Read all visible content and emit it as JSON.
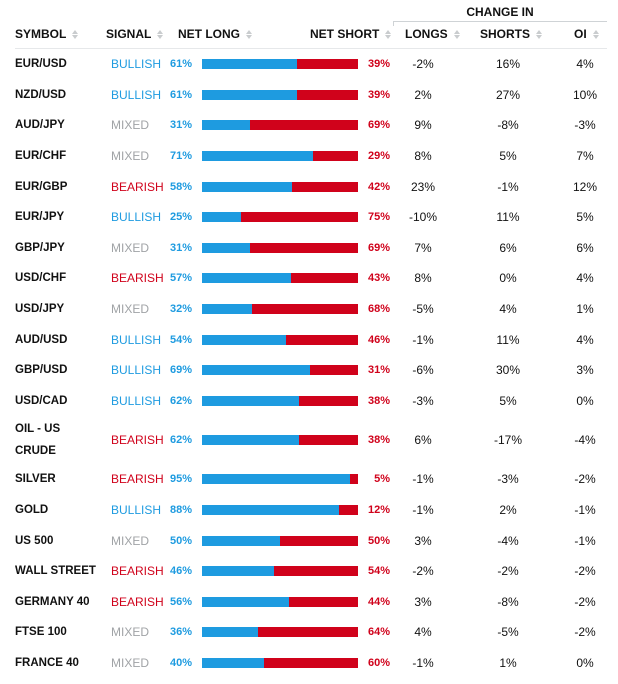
{
  "colors": {
    "bullish": "#1e9be0",
    "bearish": "#d0021b",
    "mixed": "#a0a3a6"
  },
  "header": {
    "group_label": "CHANGE IN",
    "columns": {
      "symbol": "SYMBOL",
      "signal": "SIGNAL",
      "net_long": "NET LONG",
      "net_short": "NET SHORT",
      "longs": "LONGS",
      "shorts": "SHORTS",
      "oi": "OI"
    }
  },
  "rows": [
    {
      "symbol": "EUR/USD",
      "signal": "BULLISH",
      "net_long": "61%",
      "net_short": "39%",
      "long_pct": 61,
      "longs": "-2%",
      "shorts": "16%",
      "oi": "4%"
    },
    {
      "symbol": "NZD/USD",
      "signal": "BULLISH",
      "net_long": "61%",
      "net_short": "39%",
      "long_pct": 61,
      "longs": "2%",
      "shorts": "27%",
      "oi": "10%"
    },
    {
      "symbol": "AUD/JPY",
      "signal": "MIXED",
      "net_long": "31%",
      "net_short": "69%",
      "long_pct": 31,
      "longs": "9%",
      "shorts": "-8%",
      "oi": "-3%"
    },
    {
      "symbol": "EUR/CHF",
      "signal": "MIXED",
      "net_long": "71%",
      "net_short": "29%",
      "long_pct": 71,
      "longs": "8%",
      "shorts": "5%",
      "oi": "7%"
    },
    {
      "symbol": "EUR/GBP",
      "signal": "BEARISH",
      "net_long": "58%",
      "net_short": "42%",
      "long_pct": 58,
      "longs": "23%",
      "shorts": "-1%",
      "oi": "12%"
    },
    {
      "symbol": "EUR/JPY",
      "signal": "BULLISH",
      "net_long": "25%",
      "net_short": "75%",
      "long_pct": 25,
      "longs": "-10%",
      "shorts": "11%",
      "oi": "5%"
    },
    {
      "symbol": "GBP/JPY",
      "signal": "MIXED",
      "net_long": "31%",
      "net_short": "69%",
      "long_pct": 31,
      "longs": "7%",
      "shorts": "6%",
      "oi": "6%"
    },
    {
      "symbol": "USD/CHF",
      "signal": "BEARISH",
      "net_long": "57%",
      "net_short": "43%",
      "long_pct": 57,
      "longs": "8%",
      "shorts": "0%",
      "oi": "4%"
    },
    {
      "symbol": "USD/JPY",
      "signal": "MIXED",
      "net_long": "32%",
      "net_short": "68%",
      "long_pct": 32,
      "longs": "-5%",
      "shorts": "4%",
      "oi": "1%"
    },
    {
      "symbol": "AUD/USD",
      "signal": "BULLISH",
      "net_long": "54%",
      "net_short": "46%",
      "long_pct": 54,
      "longs": "-1%",
      "shorts": "11%",
      "oi": "4%"
    },
    {
      "symbol": "GBP/USD",
      "signal": "BULLISH",
      "net_long": "69%",
      "net_short": "31%",
      "long_pct": 69,
      "longs": "-6%",
      "shorts": "30%",
      "oi": "3%"
    },
    {
      "symbol": "USD/CAD",
      "signal": "BULLISH",
      "net_long": "62%",
      "net_short": "38%",
      "long_pct": 62,
      "longs": "-3%",
      "shorts": "5%",
      "oi": "0%"
    },
    {
      "symbol": "OIL - US CRUDE",
      "signal": "BEARISH",
      "net_long": "62%",
      "net_short": "38%",
      "long_pct": 62,
      "longs": "6%",
      "shorts": "-17%",
      "oi": "-4%",
      "tall": true
    },
    {
      "symbol": "SILVER",
      "signal": "BEARISH",
      "net_long": "95%",
      "net_short": "5%",
      "long_pct": 95,
      "longs": "-1%",
      "shorts": "-3%",
      "oi": "-2%"
    },
    {
      "symbol": "GOLD",
      "signal": "BULLISH",
      "net_long": "88%",
      "net_short": "12%",
      "long_pct": 88,
      "longs": "-1%",
      "shorts": "2%",
      "oi": "-1%"
    },
    {
      "symbol": "US 500",
      "signal": "MIXED",
      "net_long": "50%",
      "net_short": "50%",
      "long_pct": 50,
      "longs": "3%",
      "shorts": "-4%",
      "oi": "-1%"
    },
    {
      "symbol": "WALL STREET",
      "signal": "BEARISH",
      "net_long": "46%",
      "net_short": "54%",
      "long_pct": 46,
      "longs": "-2%",
      "shorts": "-2%",
      "oi": "-2%"
    },
    {
      "symbol": "GERMANY 40",
      "signal": "BEARISH",
      "net_long": "56%",
      "net_short": "44%",
      "long_pct": 56,
      "longs": "3%",
      "shorts": "-8%",
      "oi": "-2%"
    },
    {
      "symbol": "FTSE 100",
      "signal": "MIXED",
      "net_long": "36%",
      "net_short": "64%",
      "long_pct": 36,
      "longs": "4%",
      "shorts": "-5%",
      "oi": "-2%"
    },
    {
      "symbol": "FRANCE 40",
      "signal": "MIXED",
      "net_long": "40%",
      "net_short": "60%",
      "long_pct": 40,
      "longs": "-1%",
      "shorts": "1%",
      "oi": "0%"
    }
  ]
}
